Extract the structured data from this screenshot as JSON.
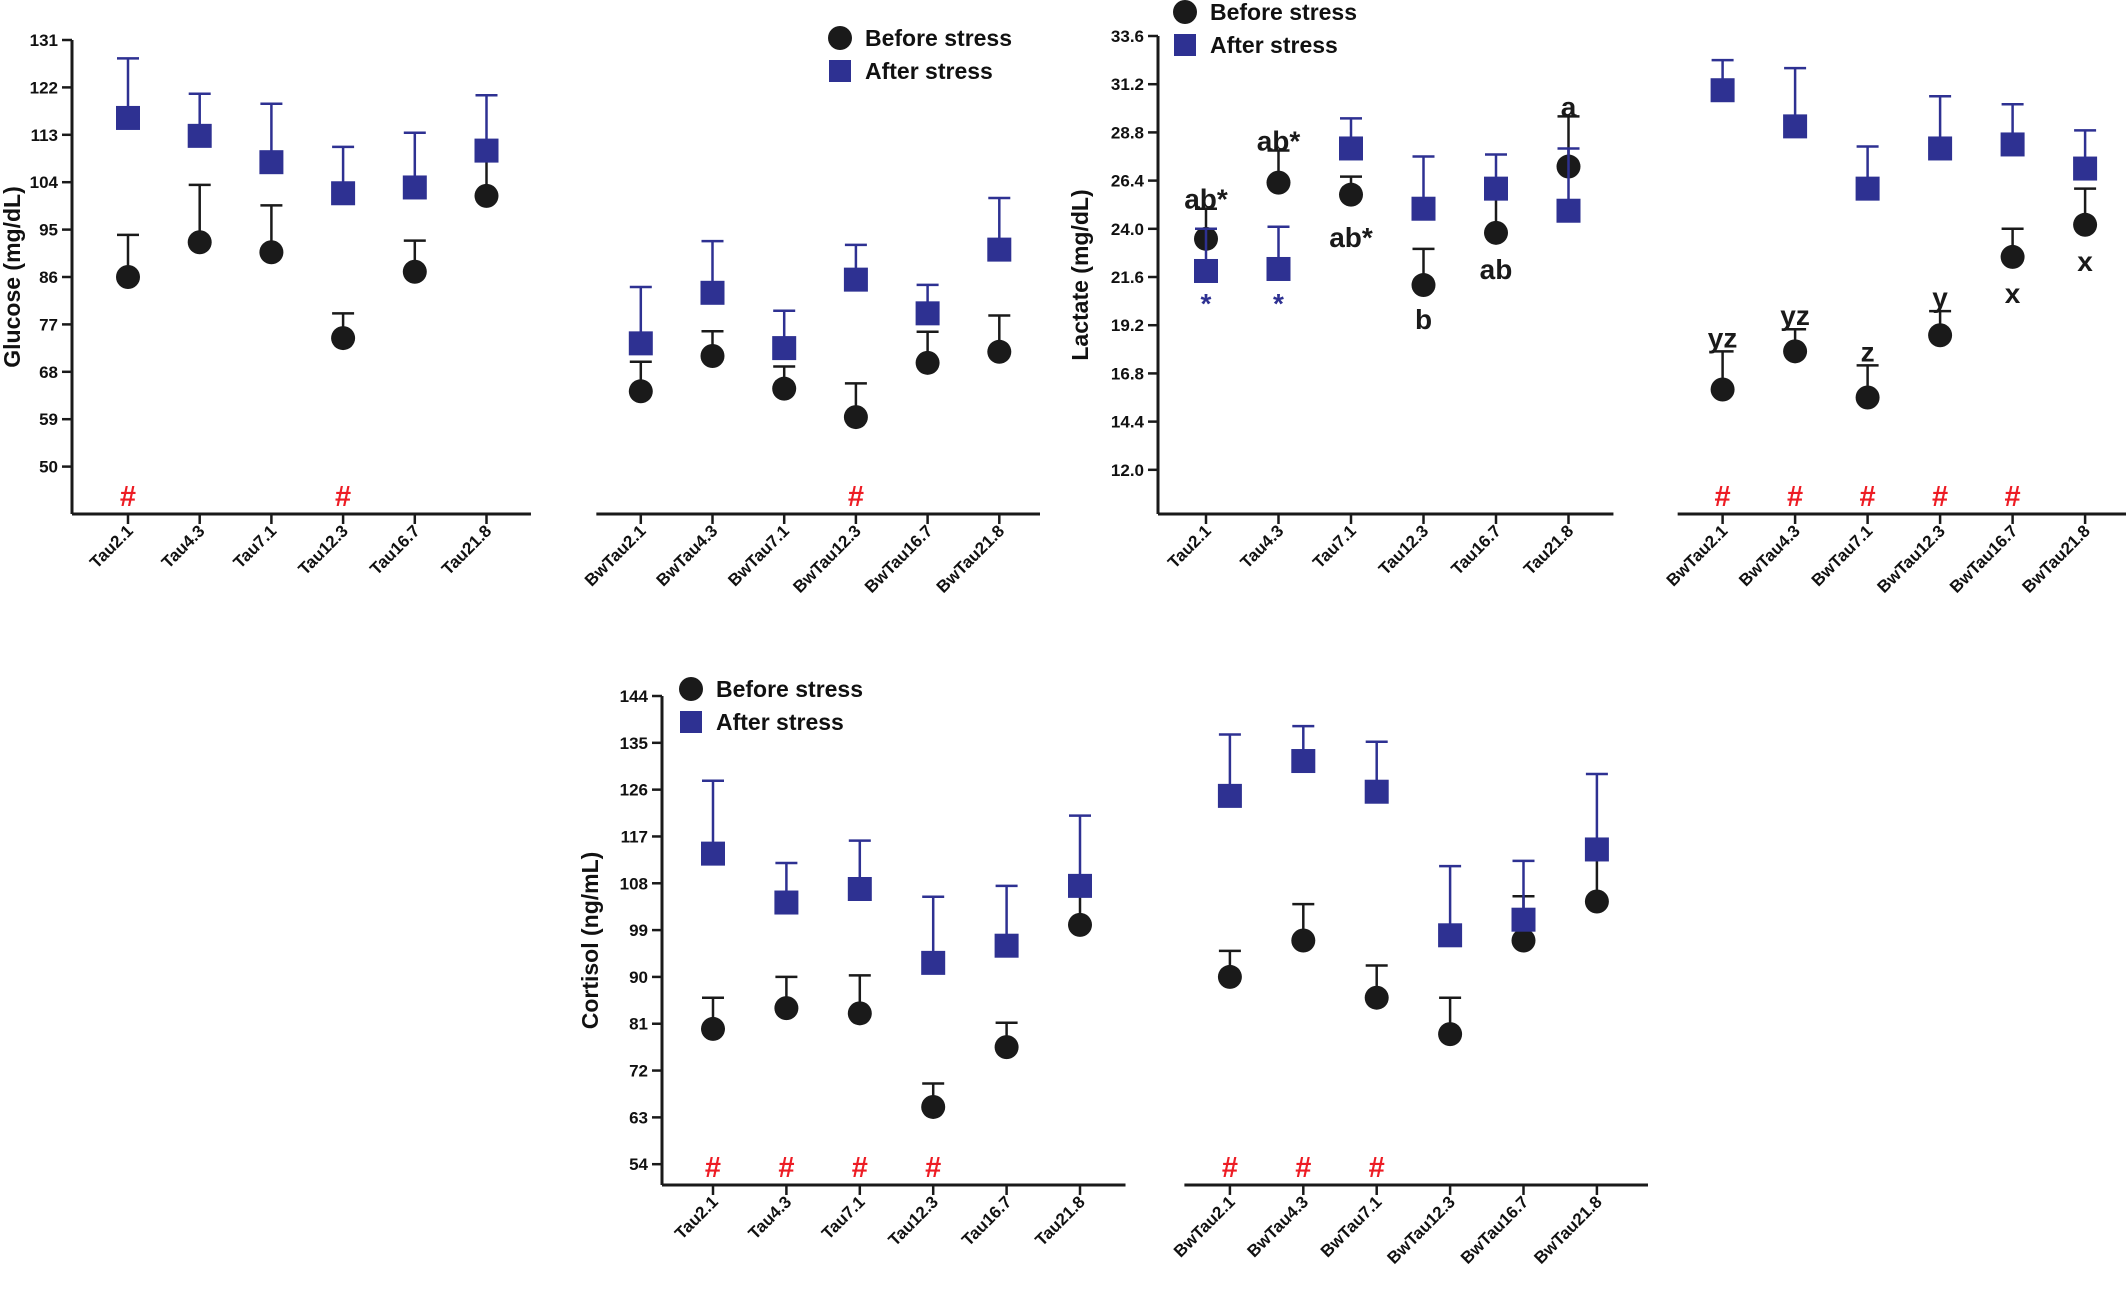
{
  "chart_data": [
    {
      "type": "scatter",
      "id": "glucose",
      "title": "",
      "ylabel": "Glucose (mg/dL)",
      "yticks": [
        50,
        59,
        68,
        77,
        86,
        95,
        104,
        113,
        122,
        131
      ],
      "ylim": [
        41,
        131
      ],
      "groups": [
        [
          "Tau2.1",
          "Tau4.3",
          "Tau7.1",
          "Tau12.3",
          "Tau16.7",
          "Tau21.8"
        ],
        [
          "BwTau2.1",
          "BwTau4.3",
          "BwTau7.1",
          "BwTau12.3",
          "BwTau16.7",
          "BwTau21.8"
        ]
      ],
      "legend_position": "top-right",
      "series": [
        {
          "name": "Before stress",
          "marker": "circle",
          "color": "#1a1a1a",
          "values": [
            86,
            92.6,
            90.7,
            74.4,
            87,
            101.4,
            64.3,
            71,
            64.8,
            59.4,
            69.7,
            71.8
          ],
          "errors": [
            8,
            10.9,
            8.9,
            4.7,
            5.9,
            9.6,
            5.6,
            4.7,
            4.2,
            6.4,
            5.9,
            6.9
          ]
        },
        {
          "name": "After stress",
          "marker": "square",
          "color": "#2e3192",
          "values": [
            116.2,
            112.8,
            107.8,
            101.9,
            103,
            110,
            73.4,
            83,
            72.5,
            85.5,
            79.1,
            91.2
          ],
          "errors": [
            11.3,
            8,
            11.1,
            8.8,
            10.4,
            10.5,
            10.7,
            9.8,
            7.1,
            6.6,
            5.4,
            9.8
          ]
        }
      ],
      "hash_marks": [
        "Tau2.1",
        "Tau12.3",
        "BwTau12.3"
      ],
      "letters": []
    },
    {
      "type": "scatter",
      "id": "lactate",
      "title": "",
      "ylabel": "Lactate (mg/dL)",
      "yticks": [
        12.0,
        14.4,
        16.8,
        19.2,
        21.6,
        24.0,
        26.4,
        28.8,
        31.2,
        33.6
      ],
      "ylim": [
        9.8,
        33.6
      ],
      "groups": [
        [
          "Tau2.1",
          "Tau4.3",
          "Tau7.1",
          "Tau12.3",
          "Tau16.7",
          "Tau21.8"
        ],
        [
          "BwTau2.1",
          "BwTau4.3",
          "BwTau7.1",
          "BwTau12.3",
          "BwTau16.7",
          "BwTau21.8"
        ]
      ],
      "legend_position": "top-left",
      "series": [
        {
          "name": "Before stress",
          "marker": "circle",
          "color": "#1a1a1a",
          "values": [
            23.5,
            26.3,
            25.7,
            21.2,
            23.8,
            27.1,
            16,
            17.9,
            15.6,
            18.7,
            22.6,
            24.2
          ],
          "errors": [
            1.5,
            1.6,
            0.9,
            1.8,
            1.7,
            2.5,
            1.9,
            1.1,
            1.6,
            1.2,
            1.4,
            1.8
          ]
        },
        {
          "name": "After stress",
          "marker": "square",
          "color": "#2e3192",
          "values": [
            21.9,
            22,
            28,
            25,
            26,
            24.9,
            30.9,
            29.1,
            26,
            28,
            28.2,
            27
          ],
          "errors": [
            2.1,
            2.1,
            1.5,
            2.6,
            1.7,
            3.1,
            1.5,
            2.9,
            2.1,
            2.6,
            2,
            1.9
          ]
        }
      ],
      "hash_marks": [
        "BwTau2.1",
        "BwTau4.3",
        "BwTau7.1",
        "BwTau12.3",
        "BwTau16.7"
      ],
      "letters": [
        {
          "category": "Tau2.1",
          "text": "ab*",
          "color": "#1a1a1a",
          "y": 25.5
        },
        {
          "category": "Tau2.1",
          "text": "*",
          "color": "#2e3192",
          "y": 20.3
        },
        {
          "category": "Tau4.3",
          "text": "ab*",
          "color": "#1a1a1a",
          "y": 28.4
        },
        {
          "category": "Tau4.3",
          "text": "*",
          "color": "#2e3192",
          "y": 20.3
        },
        {
          "category": "Tau7.1",
          "text": "ab*",
          "color": "#1a1a1a",
          "y": 23.6
        },
        {
          "category": "Tau12.3",
          "text": "b",
          "color": "#1a1a1a",
          "y": 19.5
        },
        {
          "category": "Tau16.7",
          "text": "ab",
          "color": "#1a1a1a",
          "y": 22
        },
        {
          "category": "Tau21.8",
          "text": "a",
          "color": "#1a1a1a",
          "y": 30.1
        },
        {
          "category": "BwTau2.1",
          "text": "yz",
          "color": "#1a1a1a",
          "y": 18.6
        },
        {
          "category": "BwTau4.3",
          "text": "yz",
          "color": "#1a1a1a",
          "y": 19.7
        },
        {
          "category": "BwTau7.1",
          "text": "z",
          "color": "#1a1a1a",
          "y": 17.9
        },
        {
          "category": "BwTau12.3",
          "text": "y",
          "color": "#1a1a1a",
          "y": 20.6
        },
        {
          "category": "BwTau16.7",
          "text": "x",
          "color": "#1a1a1a",
          "y": 20.8
        },
        {
          "category": "BwTau21.8",
          "text": "x",
          "color": "#1a1a1a",
          "y": 22.4
        }
      ]
    },
    {
      "type": "scatter",
      "id": "cortisol",
      "title": "",
      "ylabel": "Cortisol (ng/mL)",
      "yticks": [
        54,
        63,
        72,
        81,
        90,
        99,
        108,
        117,
        126,
        135,
        144
      ],
      "ylim": [
        50,
        144
      ],
      "groups": [
        [
          "Tau2.1",
          "Tau4.3",
          "Tau7.1",
          "Tau12.3",
          "Tau16.7",
          "Tau21.8"
        ],
        [
          "BwTau2.1",
          "BwTau4.3",
          "BwTau7.1",
          "BwTau12.3",
          "BwTau16.7",
          "BwTau21.8"
        ]
      ],
      "legend_position": "top-left",
      "series": [
        {
          "name": "Before stress",
          "marker": "circle",
          "color": "#1a1a1a",
          "values": [
            80,
            84,
            83,
            65,
            76.5,
            100,
            90,
            97,
            86,
            79,
            97,
            104.5
          ],
          "errors": [
            6,
            6,
            7.3,
            4.5,
            4.7,
            5.5,
            5,
            7,
            6.2,
            7,
            8.5,
            9.5
          ]
        },
        {
          "name": "After stress",
          "marker": "square",
          "color": "#2e3192",
          "values": [
            113.7,
            104.3,
            106.9,
            92.7,
            96,
            107.5,
            124.8,
            131.5,
            125.6,
            98,
            101,
            114.5
          ],
          "errors": [
            14,
            7.6,
            9.3,
            12.7,
            11.5,
            13.5,
            11.8,
            6.7,
            9.6,
            13.3,
            11.3,
            14.5
          ]
        }
      ],
      "hash_marks": [
        "Tau2.1",
        "Tau4.3",
        "Tau7.1",
        "Tau12.3",
        "BwTau2.1",
        "BwTau4.3",
        "BwTau7.1"
      ],
      "letters": []
    }
  ],
  "colors": {
    "before": "#1a1a1a",
    "after": "#2e3192",
    "hash": "#ed1c24"
  },
  "hash_symbol": "#"
}
